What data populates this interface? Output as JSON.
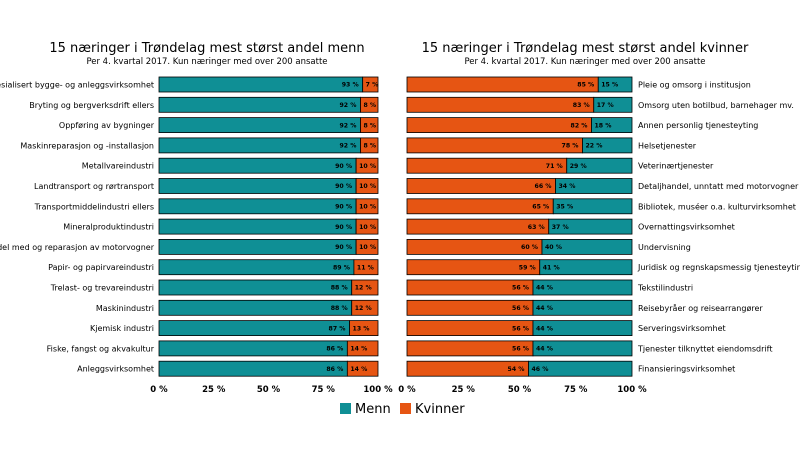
{
  "colors": {
    "men": "#0f8f95",
    "women": "#e65513",
    "stroke": "#000000"
  },
  "legend": {
    "men": "Menn",
    "women": "Kvinner"
  },
  "chart_data": [
    {
      "type": "bar",
      "orientation": "horizontal-stacked",
      "title": "15 næringer i Trøndelag mest størst andel menn",
      "subtitle": "Per 4. kvartal 2017. Kun næringer med over 200 ansatte",
      "categories": [
        "Spesialisert bygge- og anleggsvirksomhet",
        "Bryting og bergverksdrift ellers",
        "Oppføring av bygninger",
        "Maskinreparasjon og -installasjon",
        "Metallvareindustri",
        "Landtransport og rørtransport",
        "Transportmiddelindustri ellers",
        "Mineralproduktindustri",
        "Handel med og reparasjon av motorvogner",
        "Papir- og papirvareindustri",
        "Trelast- og trevareindustri",
        "Maskinindustri",
        "Kjemisk industri",
        "Fiske, fangst og akvakultur",
        "Anleggsvirksomhet"
      ],
      "series": [
        {
          "name": "Menn",
          "values": [
            93,
            92,
            92,
            92,
            90,
            90,
            90,
            90,
            90,
            89,
            88,
            88,
            87,
            86,
            86
          ],
          "labels": [
            "93 %",
            "92 %",
            "92 %",
            "92 %",
            "90 %",
            "90 %",
            "90 %",
            "90 %",
            "90 %",
            "89 %",
            "88 %",
            "88 %",
            "87 %",
            "86 %",
            "86 %"
          ]
        },
        {
          "name": "Kvinner",
          "values": [
            7,
            8,
            8,
            8,
            10,
            10,
            10,
            10,
            10,
            11,
            12,
            12,
            13,
            14,
            14
          ],
          "labels": [
            "7 %",
            "8 %",
            "8 %",
            "8 %",
            "10 %",
            "10 %",
            "10 %",
            "10 %",
            "10 %",
            "11 %",
            "12 %",
            "12 %",
            "13 %",
            "14 %",
            "14 %"
          ]
        }
      ],
      "xlim": [
        0,
        100
      ],
      "xticks": [
        "0 %",
        "25 %",
        "50 %",
        "75 %",
        "100 %"
      ]
    },
    {
      "type": "bar",
      "orientation": "horizontal-stacked",
      "title": "15 næringer i Trøndelag mest størst andel kvinner",
      "subtitle": "Per 4. kvartal 2017. Kun næringer med over 200 ansatte",
      "categories": [
        "Pleie og omsorg i institusjon",
        "Omsorg uten botilbud, barnehager mv.",
        "Annen personlig tjenesteyting",
        "Helsetjenester",
        "Veterinærtjenester",
        "Detaljhandel, unntatt med motorvogner",
        "Bibliotek, muséer o.a. kulturvirksomhet",
        "Overnattingsvirksomhet",
        "Undervisning",
        "Juridisk og regnskapsmessig tjenesteyting",
        "Tekstilindustri",
        "Reisebyråer og reisearrangører",
        "Serveringsvirksomhet",
        "Tjenester tilknyttet eiendomsdrift",
        "Finansieringsvirksomhet"
      ],
      "series": [
        {
          "name": "Kvinner",
          "values": [
            85,
            83,
            82,
            78,
            71,
            66,
            65,
            63,
            60,
            59,
            56,
            56,
            56,
            56,
            54
          ],
          "labels": [
            "85 %",
            "83 %",
            "82 %",
            "78 %",
            "71 %",
            "66 %",
            "65 %",
            "63 %",
            "60 %",
            "59 %",
            "56 %",
            "56 %",
            "56 %",
            "56 %",
            "54 %"
          ]
        },
        {
          "name": "Menn",
          "values": [
            15,
            17,
            18,
            22,
            29,
            34,
            35,
            37,
            40,
            41,
            44,
            44,
            44,
            44,
            46
          ],
          "labels": [
            "15 %",
            "17 %",
            "18 %",
            "22 %",
            "29 %",
            "34 %",
            "35 %",
            "37 %",
            "40 %",
            "41 %",
            "44 %",
            "44 %",
            "44 %",
            "44 %",
            "46 %"
          ]
        }
      ],
      "xlim": [
        0,
        100
      ],
      "xticks": [
        "0 %",
        "25 %",
        "50 %",
        "75 %",
        "100 %"
      ]
    }
  ]
}
